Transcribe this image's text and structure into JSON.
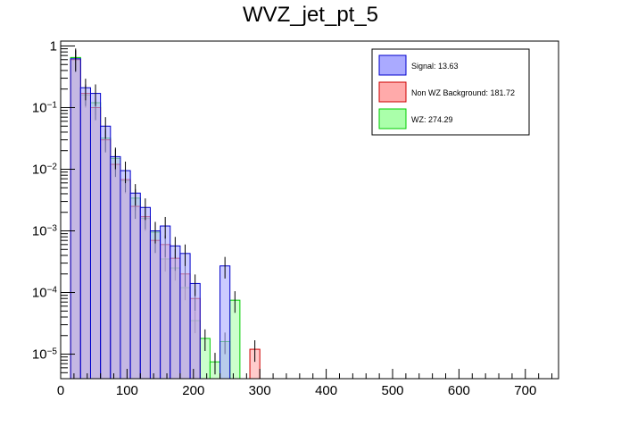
{
  "chart_data": {
    "type": "histogram-stacked-overlay",
    "title": "WVZ_jet_pt_5",
    "xlabel": "",
    "ylabel": "",
    "xlim": [
      0,
      750
    ],
    "ylim": [
      4e-06,
      1.2
    ],
    "y_scale": "log",
    "bin_width": 15,
    "x_ticks": [
      0,
      100,
      200,
      300,
      400,
      500,
      600,
      700
    ],
    "x_tick_labels": [
      "0",
      "100",
      "200",
      "300",
      "400",
      "500",
      "600",
      "700"
    ],
    "y_ticks": [
      1,
      0.1,
      0.01,
      0.001,
      0.0001,
      1e-05
    ],
    "y_tick_labels": [
      {
        "base": "1",
        "exp": ""
      },
      {
        "base": "10",
        "exp": "−1"
      },
      {
        "base": "10",
        "exp": "−2"
      },
      {
        "base": "10",
        "exp": "−3"
      },
      {
        "base": "10",
        "exp": "−4"
      },
      {
        "base": "10",
        "exp": "−5"
      }
    ],
    "legend_position": "top-right",
    "series": [
      {
        "name": "WZ",
        "legend_label": "WZ: 274.29",
        "fill": "#aaffaa",
        "stroke": "#00cc00",
        "bins": [
          [
            15,
            0.65
          ],
          [
            30,
            0.16
          ],
          [
            45,
            0.12
          ],
          [
            60,
            0.032
          ],
          [
            75,
            0.015
          ],
          [
            90,
            0.0065
          ],
          [
            105,
            0.0034
          ],
          [
            120,
            0.0016
          ],
          [
            135,
            0.00095
          ],
          [
            150,
            0.00035
          ],
          [
            165,
            0.00025
          ],
          [
            180,
            0.00012
          ],
          [
            195,
            3.5e-05
          ],
          [
            210,
            1.8e-05
          ],
          [
            225,
            7.5e-06
          ],
          [
            240,
            1.6e-05
          ],
          [
            255,
            7.5e-05
          ]
        ]
      },
      {
        "name": "Non WZ Background",
        "legend_label": "Non WZ Background: 181.72",
        "fill": "#ffaaaa",
        "stroke": "#cc0000",
        "bins": [
          [
            15,
            0.6
          ],
          [
            30,
            0.17
          ],
          [
            45,
            0.1
          ],
          [
            60,
            0.03
          ],
          [
            75,
            0.012
          ],
          [
            90,
            0.0068
          ],
          [
            105,
            0.0025
          ],
          [
            120,
            0.0017
          ],
          [
            135,
            0.0007
          ],
          [
            150,
            0.0006
          ],
          [
            165,
            0.00036
          ],
          [
            180,
            0.0002
          ],
          [
            195,
            8e-05
          ],
          [
            285,
            1.2e-05
          ]
        ]
      },
      {
        "name": "Signal",
        "legend_label": "Signal: 13.63",
        "fill": "#aaaaff",
        "stroke": "#0000cc",
        "bins": [
          [
            15,
            0.62
          ],
          [
            30,
            0.21
          ],
          [
            45,
            0.17
          ],
          [
            60,
            0.05
          ],
          [
            75,
            0.016
          ],
          [
            90,
            0.0095
          ],
          [
            105,
            0.0041
          ],
          [
            120,
            0.0024
          ],
          [
            135,
            0.001
          ],
          [
            150,
            0.0012
          ],
          [
            165,
            0.00057
          ],
          [
            180,
            0.00043
          ],
          [
            195,
            0.00014
          ],
          [
            240,
            0.00027
          ]
        ]
      }
    ]
  }
}
